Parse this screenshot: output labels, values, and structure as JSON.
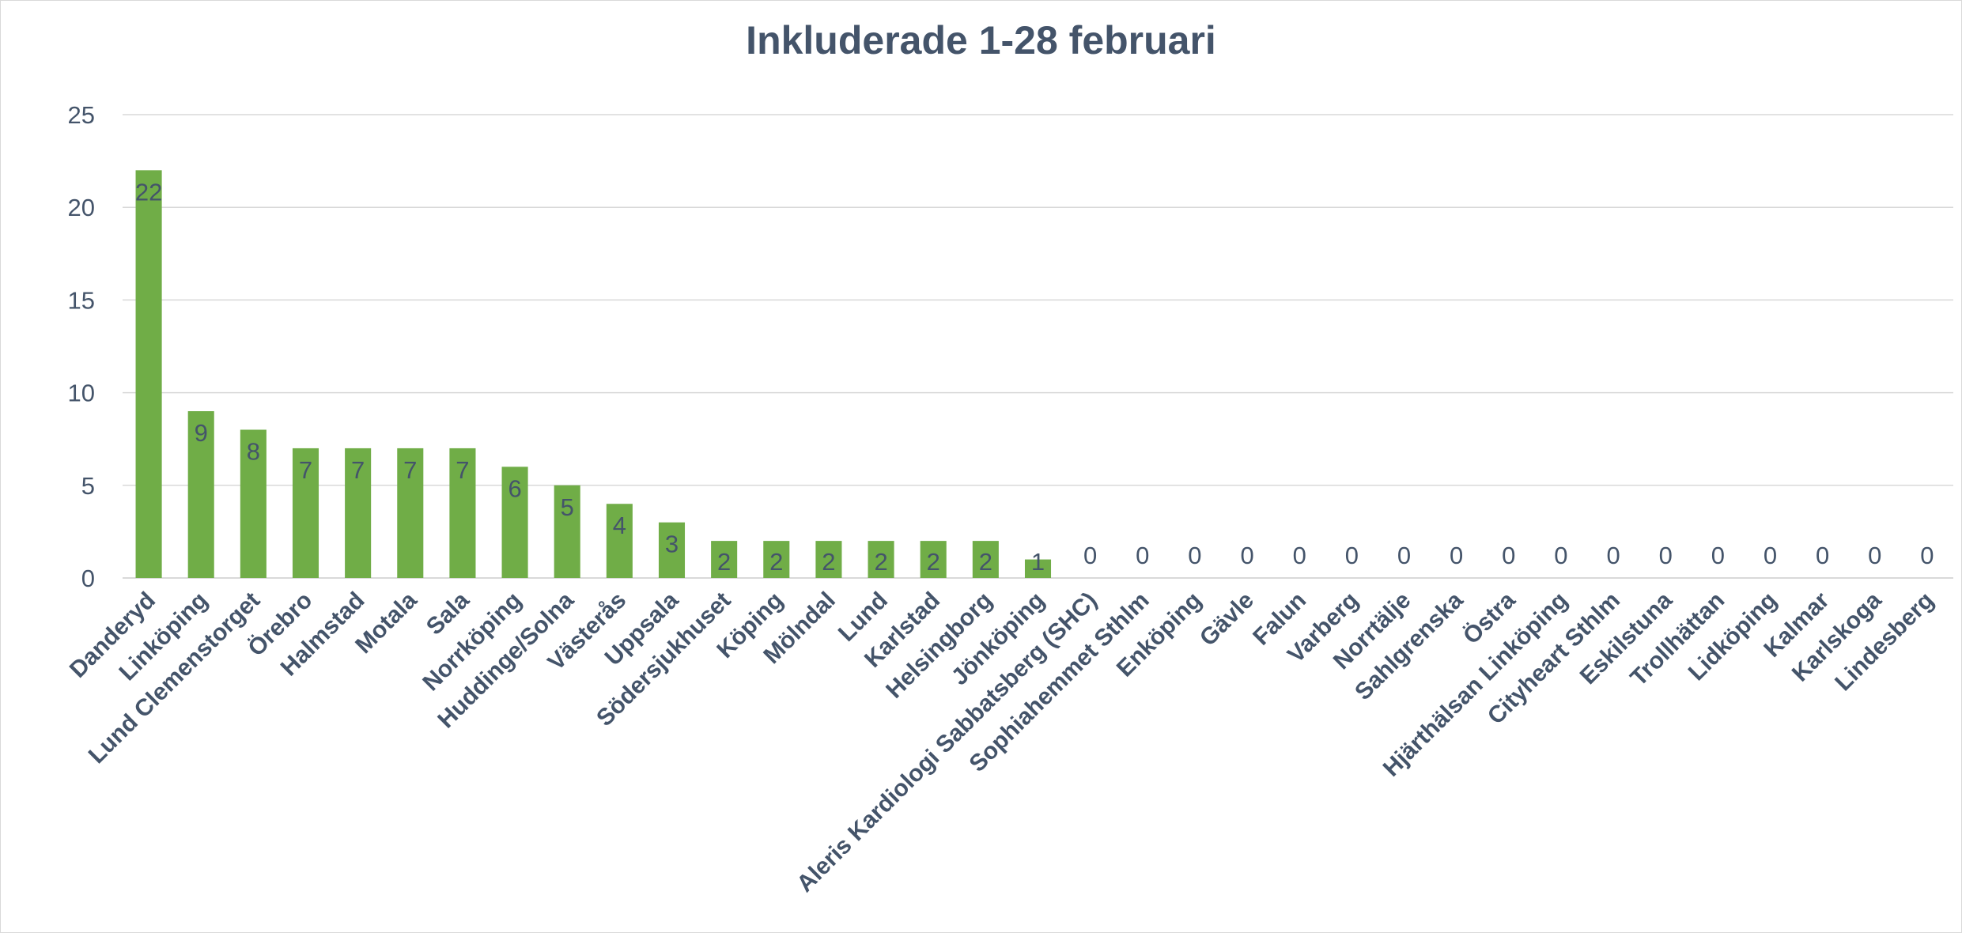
{
  "chart_data": {
    "type": "bar",
    "title": "Inkluderade 1-28 februari",
    "xlabel": "",
    "ylabel": "",
    "ylim": [
      0,
      25
    ],
    "yticks": [
      0,
      5,
      10,
      15,
      20,
      25
    ],
    "grid": true,
    "legend": "none",
    "bar_color": "#70ad47",
    "text_color": "#44546a",
    "grid_color": "#d9d9d9",
    "categories": [
      "Danderyd",
      "Linköping",
      "Lund Clemenstorget",
      "Örebro",
      "Halmstad",
      "Motala",
      "Sala",
      "Norrköping",
      "Huddinge/Solna",
      "Västerås",
      "Uppsala",
      "Södersjukhuset",
      "Köping",
      "Mölndal",
      "Lund",
      "Karlstad",
      "Helsingborg",
      "Jönköping",
      "Aleris Kardiologi Sabbatsberg (SHC)",
      "Sophiahemmet Sthlm",
      "Enköping",
      "Gävle",
      "Falun",
      "Varberg",
      "Norrtälje",
      "Sahlgrenska",
      "Östra",
      "Hjärthälsan Linköping",
      "Cityheart Sthlm",
      "Eskilstuna",
      "Trollhättan",
      "Lidköping",
      "Kalmar",
      "Karlskoga",
      "Lindesberg"
    ],
    "values": [
      22,
      9,
      8,
      7,
      7,
      7,
      7,
      6,
      5,
      4,
      3,
      2,
      2,
      2,
      2,
      2,
      2,
      1,
      0,
      0,
      0,
      0,
      0,
      0,
      0,
      0,
      0,
      0,
      0,
      0,
      0,
      0,
      0,
      0,
      0
    ],
    "data_labels": true
  }
}
